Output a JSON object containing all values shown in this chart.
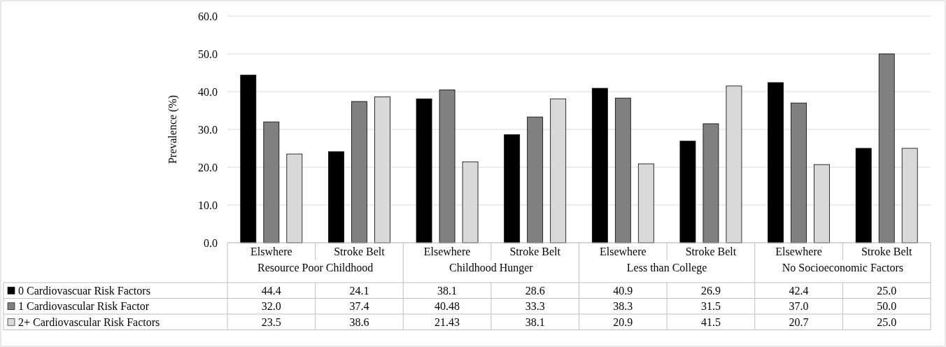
{
  "chart_data": {
    "type": "bar",
    "ylabel": "Prevalence (%)",
    "categories": [
      "Elswhere",
      "Stroke Belt",
      "Elsewhere",
      "Stroke Belt",
      "Elsewhere",
      "Stroke Belt",
      "Elsewhere",
      "Stroke Belt"
    ],
    "annotations": [
      "Resource Poor Childhood",
      "Childhood Hunger",
      "Less than College",
      "No Socioeconomic Factors"
    ],
    "series": [
      {
        "name": "0 Cardiovascuar Risk Factors",
        "color": "#000000",
        "values": [
          44.4,
          24.1,
          38.1,
          28.6,
          40.9,
          26.9,
          42.4,
          25.0
        ],
        "value_labels": [
          "44.4",
          "24.1",
          "38.1",
          "28.6",
          "40.9",
          "26.9",
          "42.4",
          "25.0"
        ]
      },
      {
        "name": "1 Cardiovascular Risk Factor",
        "color": "#808080",
        "values": [
          32.0,
          37.4,
          40.48,
          33.3,
          38.3,
          31.5,
          37.0,
          50.0
        ],
        "value_labels": [
          "32.0",
          "37.4",
          "40.48",
          "33.3",
          "38.3",
          "31.5",
          "37.0",
          "50.0"
        ]
      },
      {
        "name": "2+ Cardiovascular Risk Factors",
        "color": "#d9d9d9",
        "values": [
          23.5,
          38.6,
          21.43,
          38.1,
          20.9,
          41.5,
          20.7,
          25.0
        ],
        "value_labels": [
          "23.5",
          "38.6",
          "21.43",
          "38.1",
          "20.9",
          "41.5",
          "20.7",
          "25.0"
        ]
      }
    ],
    "ylim": [
      0,
      60
    ],
    "yticks": [
      {
        "value": 0,
        "label": "0.0"
      },
      {
        "value": 10,
        "label": "10.0"
      },
      {
        "value": 20,
        "label": "20.0"
      },
      {
        "value": 30,
        "label": "30.0"
      },
      {
        "value": 40,
        "label": "40.0"
      },
      {
        "value": 50,
        "label": "50.0"
      },
      {
        "value": 60,
        "label": "60.0"
      }
    ],
    "grid": "y",
    "legend": "bottom"
  }
}
